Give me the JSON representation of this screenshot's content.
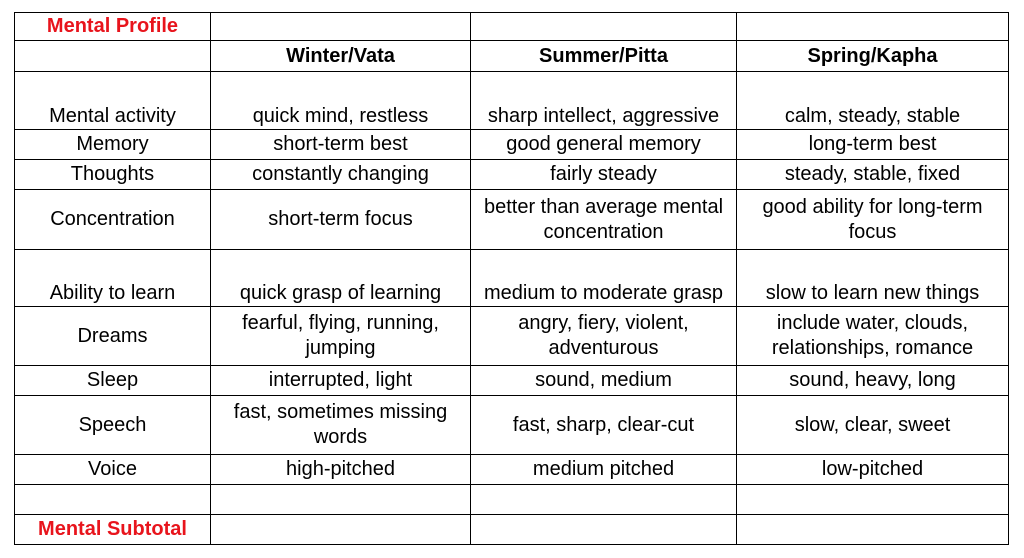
{
  "title": "Mental Profile",
  "subtotal_label": "Mental Subtotal",
  "accent_color": "#e8141c",
  "columns": [
    "Winter/Vata",
    "Summer/Pitta",
    "Spring/Kapha"
  ],
  "rows": [
    {
      "label": "Mental activity",
      "vata": "quick mind, restless",
      "pitta": "sharp intellect, aggressive",
      "kapha": "calm, steady, stable"
    },
    {
      "label": "Memory",
      "vata": "short-term best",
      "pitta": "good general memory",
      "kapha": "long-term best"
    },
    {
      "label": "Thoughts",
      "vata": "constantly changing",
      "pitta": "fairly steady",
      "kapha": "steady, stable, fixed"
    },
    {
      "label": "Concentration",
      "vata": "short-term focus",
      "pitta": "better than average mental concentration",
      "kapha": "good ability for long-term focus"
    },
    {
      "label": "Ability to learn",
      "vata": "quick grasp of learning",
      "pitta": "medium to moderate grasp",
      "kapha": "slow to learn new things"
    },
    {
      "label": "Dreams",
      "vata": "fearful, flying, running, jumping",
      "pitta": "angry, fiery, violent, adventurous",
      "kapha": "include water, clouds, relationships, romance"
    },
    {
      "label": "Sleep",
      "vata": "interrupted, light",
      "pitta": "sound, medium",
      "kapha": "sound, heavy, long"
    },
    {
      "label": "Speech",
      "vata": "fast, sometimes missing words",
      "pitta": "fast, sharp, clear-cut",
      "kapha": "slow, clear, sweet"
    },
    {
      "label": "Voice",
      "vata": "high-pitched",
      "pitta": "medium pitched",
      "kapha": "low-pitched"
    }
  ]
}
